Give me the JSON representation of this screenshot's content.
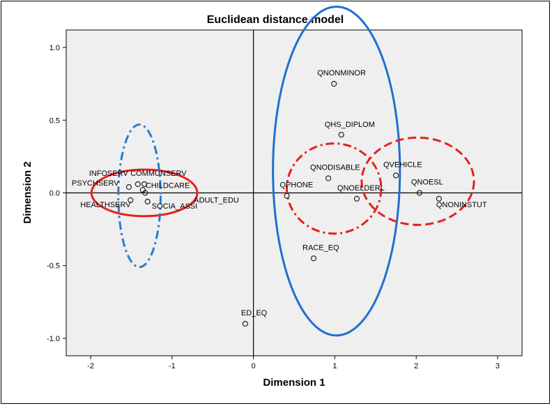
{
  "chart_data": {
    "type": "scatter",
    "title": "Euclidean distance model",
    "xlabel": "Dimension 1",
    "ylabel": "Dimension 2",
    "xlim": [
      -2.3,
      3.3
    ],
    "ylim": [
      -1.12,
      1.12
    ],
    "xticks": [
      -2,
      -1,
      0,
      1,
      2,
      3
    ],
    "yticks": [
      -1.0,
      -0.5,
      0.0,
      0.5,
      1.0
    ],
    "xtick_labels": [
      "-2",
      "-1",
      "0",
      "1",
      "2",
      "3"
    ],
    "ytick_labels": [
      "-1.0",
      "-0.5",
      "0.0",
      "0.5",
      "1.0"
    ],
    "grid": false,
    "reference_lines": {
      "x": 0,
      "y": 0
    },
    "points": [
      {
        "label": "QNONMINOR",
        "x": 0.99,
        "y": 0.75
      },
      {
        "label": "QHS_DIPLOM",
        "x": 1.08,
        "y": 0.4
      },
      {
        "label": "QNODISABLE",
        "x": 0.92,
        "y": 0.1
      },
      {
        "label": "QVEHICLE",
        "x": 1.75,
        "y": 0.12
      },
      {
        "label": "QPHONE",
        "x": 0.41,
        "y": -0.02
      },
      {
        "label": "QNOELDERL",
        "x": 1.27,
        "y": -0.04
      },
      {
        "label": "QNOESL",
        "x": 2.04,
        "y": 0.0
      },
      {
        "label": "QNONINSTUT",
        "x": 2.28,
        "y": -0.04
      },
      {
        "label": "RACE_EQ",
        "x": 0.74,
        "y": -0.45
      },
      {
        "label": "ED_EQ",
        "x": -0.1,
        "y": -0.9
      },
      {
        "label": "INFOSERV",
        "x": -1.42,
        "y": 0.06
      },
      {
        "label": "COMMUNSERV",
        "x": -1.34,
        "y": 0.06
      },
      {
        "label": "PSYCHSERV",
        "x": -1.53,
        "y": 0.04
      },
      {
        "label": "CHILDCARE",
        "x": -1.36,
        "y": 0.02
      },
      {
        "label": "HEALTHSERV",
        "x": -1.51,
        "y": -0.05
      },
      {
        "label": "SOCIA_ASSI",
        "x": -1.3,
        "y": -0.06
      },
      {
        "label": "ADULT_EDU",
        "x": -1.33,
        "y": 0.0
      }
    ],
    "ellipses": [
      {
        "cx": -1.34,
        "cy": 0.0,
        "rx": 0.65,
        "ry": 0.16,
        "color": "#e8201c",
        "style": "solid"
      },
      {
        "cx": -1.4,
        "cy": -0.02,
        "rx": 0.26,
        "ry": 0.49,
        "color": "#2a7bd0",
        "style": "dashdot"
      },
      {
        "cx": 1.02,
        "cy": 0.15,
        "rx": 0.78,
        "ry": 1.13,
        "color": "#1f6fd0",
        "style": "solid"
      },
      {
        "cx": 0.99,
        "cy": 0.03,
        "rx": 0.58,
        "ry": 0.31,
        "color": "#e8201c",
        "style": "dashdot"
      },
      {
        "cx": 2.02,
        "cy": 0.08,
        "rx": 0.69,
        "ry": 0.3,
        "color": "#e8201c",
        "style": "dashed"
      }
    ],
    "plot_background": "#efefef"
  }
}
